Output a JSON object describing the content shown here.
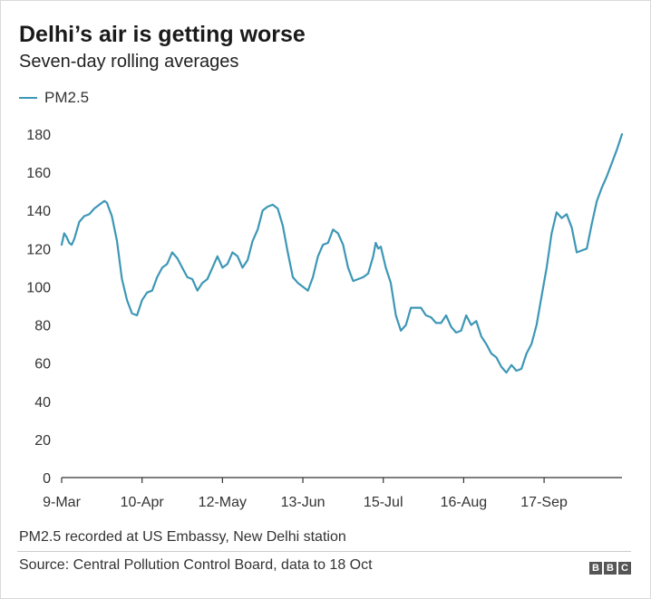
{
  "header": {
    "title": "Delhi’s air is getting worse",
    "subtitle": "Seven-day rolling averages"
  },
  "footer": {
    "note": "PM2.5 recorded at US Embassy, New Delhi station",
    "source": "Source: Central Pollution Control Board, data to 18 Oct",
    "logo_letters": [
      "B",
      "B",
      "C"
    ]
  },
  "colors": {
    "line": "#3d97b6",
    "axis": "#333333"
  },
  "chart_data": {
    "type": "line",
    "title": "Delhi’s air is getting worse",
    "subtitle": "Seven-day rolling averages",
    "xlabel": "",
    "ylabel": "",
    "ylim": [
      0,
      180
    ],
    "yticks": [
      0,
      20,
      40,
      60,
      80,
      100,
      120,
      140,
      160,
      180
    ],
    "xlim": [
      "2020-03-09",
      "2020-10-18"
    ],
    "xticks": [
      "9-Mar",
      "10-Apr",
      "12-May",
      "13-Jun",
      "15-Jul",
      "16-Aug",
      "17-Sep"
    ],
    "grid": false,
    "legend_position": "top-left",
    "series": [
      {
        "name": "PM2.5",
        "points": [
          [
            "2020-03-09",
            122
          ],
          [
            "2020-03-10",
            128
          ],
          [
            "2020-03-11",
            126
          ],
          [
            "2020-03-12",
            123
          ],
          [
            "2020-03-13",
            122
          ],
          [
            "2020-03-14",
            125
          ],
          [
            "2020-03-16",
            134
          ],
          [
            "2020-03-18",
            137
          ],
          [
            "2020-03-20",
            138
          ],
          [
            "2020-03-22",
            141
          ],
          [
            "2020-03-24",
            143
          ],
          [
            "2020-03-26",
            145
          ],
          [
            "2020-03-27",
            144
          ],
          [
            "2020-03-29",
            137
          ],
          [
            "2020-03-31",
            124
          ],
          [
            "2020-04-02",
            104
          ],
          [
            "2020-04-04",
            93
          ],
          [
            "2020-04-06",
            86
          ],
          [
            "2020-04-08",
            85
          ],
          [
            "2020-04-10",
            93
          ],
          [
            "2020-04-12",
            97
          ],
          [
            "2020-04-14",
            98
          ],
          [
            "2020-04-16",
            105
          ],
          [
            "2020-04-18",
            110
          ],
          [
            "2020-04-20",
            112
          ],
          [
            "2020-04-22",
            118
          ],
          [
            "2020-04-24",
            115
          ],
          [
            "2020-04-26",
            110
          ],
          [
            "2020-04-28",
            105
          ],
          [
            "2020-04-30",
            104
          ],
          [
            "2020-05-02",
            98
          ],
          [
            "2020-05-04",
            102
          ],
          [
            "2020-05-06",
            104
          ],
          [
            "2020-05-08",
            110
          ],
          [
            "2020-05-10",
            116
          ],
          [
            "2020-05-12",
            110
          ],
          [
            "2020-05-14",
            112
          ],
          [
            "2020-05-16",
            118
          ],
          [
            "2020-05-18",
            116
          ],
          [
            "2020-05-20",
            110
          ],
          [
            "2020-05-22",
            114
          ],
          [
            "2020-05-24",
            124
          ],
          [
            "2020-05-26",
            130
          ],
          [
            "2020-05-28",
            140
          ],
          [
            "2020-05-30",
            142
          ],
          [
            "2020-06-01",
            143
          ],
          [
            "2020-06-03",
            141
          ],
          [
            "2020-06-05",
            132
          ],
          [
            "2020-06-07",
            118
          ],
          [
            "2020-06-09",
            105
          ],
          [
            "2020-06-11",
            102
          ],
          [
            "2020-06-13",
            100
          ],
          [
            "2020-06-15",
            98
          ],
          [
            "2020-06-17",
            105
          ],
          [
            "2020-06-19",
            116
          ],
          [
            "2020-06-21",
            122
          ],
          [
            "2020-06-23",
            123
          ],
          [
            "2020-06-25",
            130
          ],
          [
            "2020-06-27",
            128
          ],
          [
            "2020-06-29",
            122
          ],
          [
            "2020-07-01",
            110
          ],
          [
            "2020-07-03",
            103
          ],
          [
            "2020-07-05",
            104
          ],
          [
            "2020-07-07",
            105
          ],
          [
            "2020-07-09",
            107
          ],
          [
            "2020-07-11",
            116
          ],
          [
            "2020-07-12",
            123
          ],
          [
            "2020-07-13",
            120
          ],
          [
            "2020-07-14",
            121
          ],
          [
            "2020-07-16",
            110
          ],
          [
            "2020-07-18",
            102
          ],
          [
            "2020-07-20",
            85
          ],
          [
            "2020-07-22",
            77
          ],
          [
            "2020-07-24",
            80
          ],
          [
            "2020-07-26",
            89
          ],
          [
            "2020-07-28",
            89
          ],
          [
            "2020-07-30",
            89
          ],
          [
            "2020-08-01",
            85
          ],
          [
            "2020-08-03",
            84
          ],
          [
            "2020-08-05",
            81
          ],
          [
            "2020-08-07",
            81
          ],
          [
            "2020-08-09",
            85
          ],
          [
            "2020-08-11",
            79
          ],
          [
            "2020-08-13",
            76
          ],
          [
            "2020-08-15",
            77
          ],
          [
            "2020-08-17",
            85
          ],
          [
            "2020-08-19",
            80
          ],
          [
            "2020-08-21",
            82
          ],
          [
            "2020-08-23",
            74
          ],
          [
            "2020-08-25",
            70
          ],
          [
            "2020-08-27",
            65
          ],
          [
            "2020-08-29",
            63
          ],
          [
            "2020-08-31",
            58
          ],
          [
            "2020-09-02",
            55
          ],
          [
            "2020-09-04",
            59
          ],
          [
            "2020-09-06",
            56
          ],
          [
            "2020-09-08",
            57
          ],
          [
            "2020-09-10",
            65
          ],
          [
            "2020-09-12",
            70
          ],
          [
            "2020-09-14",
            80
          ],
          [
            "2020-09-16",
            95
          ],
          [
            "2020-09-18",
            110
          ],
          [
            "2020-09-20",
            128
          ],
          [
            "2020-09-22",
            139
          ],
          [
            "2020-09-24",
            136
          ],
          [
            "2020-09-26",
            138
          ],
          [
            "2020-09-28",
            131
          ],
          [
            "2020-09-30",
            118
          ],
          [
            "2020-10-02",
            119
          ],
          [
            "2020-10-04",
            120
          ],
          [
            "2020-10-06",
            133
          ],
          [
            "2020-10-08",
            145
          ],
          [
            "2020-10-10",
            152
          ],
          [
            "2020-10-12",
            158
          ],
          [
            "2020-10-14",
            165
          ],
          [
            "2020-10-16",
            172
          ],
          [
            "2020-10-18",
            180
          ]
        ]
      }
    ]
  }
}
